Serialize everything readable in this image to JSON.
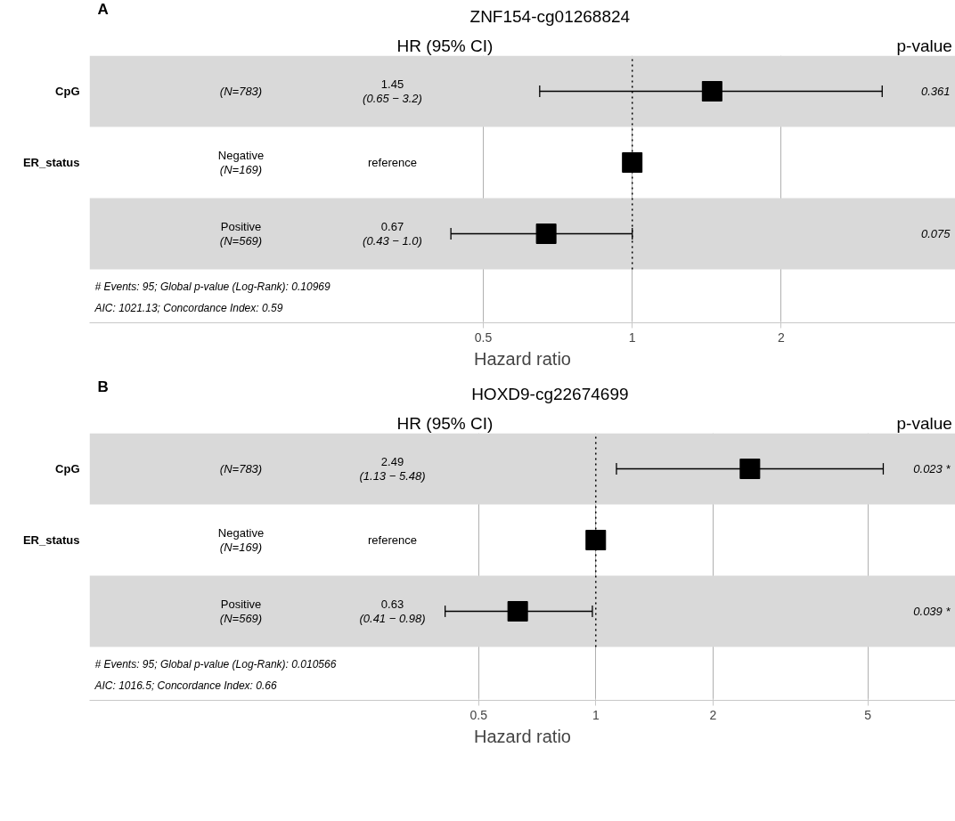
{
  "chart_data": [
    {
      "type": "scatter",
      "orientation": "horizontal",
      "title": "ZNF154-cg01268824",
      "xlabel": "Hazard ratio",
      "categories": [
        "CpG",
        "ER_status",
        null
      ],
      "values": [
        1.45,
        1,
        0.67
      ],
      "errors": [
        [
          0.65,
          3.2
        ],
        null,
        [
          0.43,
          1.0
        ]
      ],
      "color": "#000000",
      "marker": "square",
      "log": "x",
      "xlim": [
        0.08,
        4.5
      ],
      "xticks": [
        0.5,
        1,
        2
      ],
      "grid": "x",
      "ref_lines": [
        {
          "axis": "x",
          "value": 1,
          "line_style": "dotted"
        }
      ],
      "annotations": [
        "A",
        "HR (95% CI)",
        "p-value",
        "(N=783)",
        "Negative\n(N=169)",
        "Positive\n(N=569)",
        "1.45\n(0.65 − 3.2)",
        "reference",
        "0.67\n(0.43 − 1.0)",
        "0.361",
        "0.075",
        "# Events: 95; Global p-value (Log-Rank): 0.10969",
        "AIC: 1021.13; Concordance Index: 0.59"
      ]
    },
    {
      "type": "scatter",
      "orientation": "horizontal",
      "title": "HOXD9-cg22674699",
      "xlabel": "Hazard ratio",
      "categories": [
        "CpG",
        "ER_status",
        null
      ],
      "values": [
        2.49,
        1,
        0.63
      ],
      "errors": [
        [
          1.13,
          5.48
        ],
        null,
        [
          0.41,
          0.98
        ]
      ],
      "color": "#000000",
      "marker": "square",
      "log": "x",
      "xlim": [
        0.05,
        8.4
      ],
      "xticks": [
        0.5,
        1,
        2,
        5
      ],
      "grid": "x",
      "ref_lines": [
        {
          "axis": "x",
          "value": 1,
          "line_style": "dotted"
        }
      ],
      "annotations": [
        "B",
        "HR (95% CI)",
        "p-value",
        "(N=783)",
        "Negative\n(N=169)",
        "Positive\n(N=569)",
        "2.49\n(1.13 − 5.48)",
        "reference",
        "0.63\n(0.41 − 0.98)",
        "0.023 *",
        "0.039 *",
        "# Events: 95; Global p-value (Log-Rank): 0.010566",
        "AIC: 1016.5; Concordance Index: 0.66"
      ]
    }
  ]
}
